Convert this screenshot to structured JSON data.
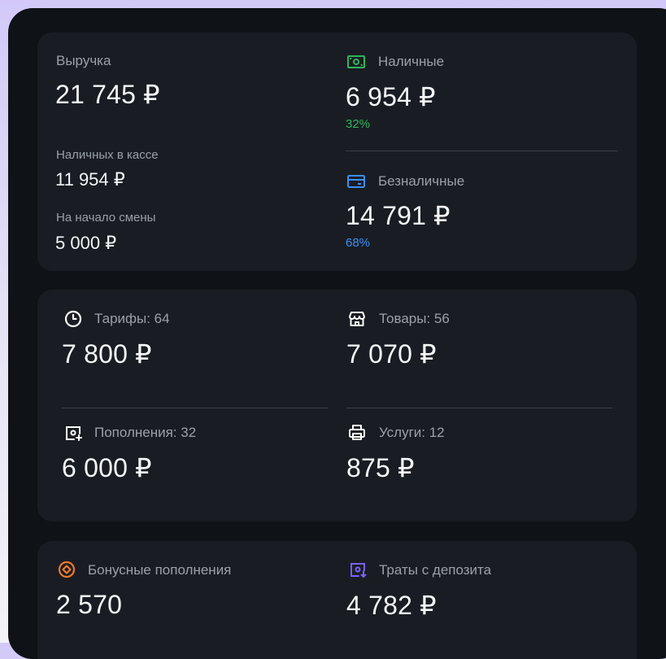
{
  "summary": {
    "revenue_label": "Выручка",
    "revenue_value": "21 745 ₽",
    "cash_in_register_label": "Наличных в кассе",
    "cash_in_register_value": "11 954 ₽",
    "shift_start_label": "На начало смены",
    "shift_start_value": "5 000 ₽",
    "cash_label": "Наличные",
    "cash_value": "6 954 ₽",
    "cash_percent": "32%",
    "cashless_label": "Безналичные",
    "cashless_value": "14 791 ₽",
    "cashless_percent": "68%"
  },
  "categories": {
    "tariffs_label": "Тарифы: 64",
    "tariffs_value": "7 800 ₽",
    "goods_label": "Товары: 56",
    "goods_value": "7 070 ₽",
    "topups_label": "Пополнения: 32",
    "topups_value": "6 000 ₽",
    "services_label": "Услуги: 12",
    "services_value": "875 ₽"
  },
  "deposits": {
    "bonus_topups_label": "Бонусные пополнения",
    "bonus_topups_value": "2 570",
    "deposit_spending_label": "Траты с депозита",
    "deposit_spending_value": "4 782 ₽"
  },
  "colors": {
    "positive": "#2fb55a",
    "accent_blue": "#3d8ef7",
    "bonus_orange": "#f07a2c",
    "deposit_purple": "#7b61ff"
  }
}
